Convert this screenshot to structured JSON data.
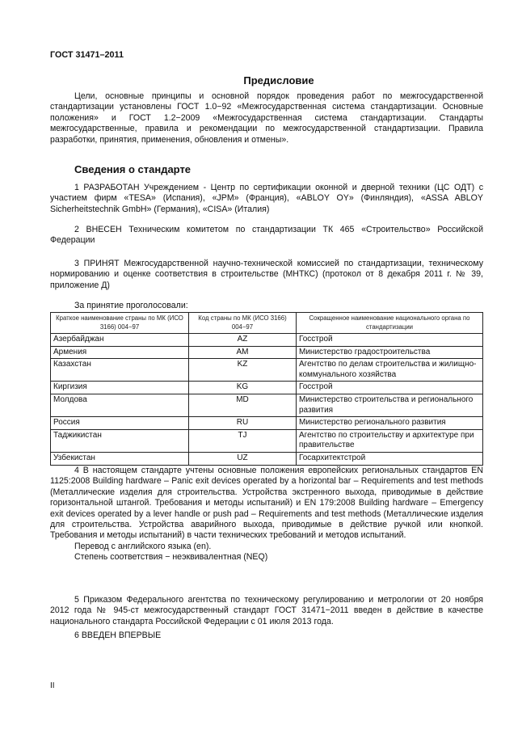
{
  "header": {
    "doc_code": "ГОСТ 31471–2011"
  },
  "preface": {
    "title": "Предисловие",
    "text": "Цели, основные принципы и основной порядок проведения работ по межгосударственной стандартизации установлены ГОСТ 1.0−92 «Межгосударственная система стандартизации. Основные положения» и ГОСТ 1.2−2009 «Межгосударственная система стандартизации. Стандарты межгосударственные, правила и рекомендации по межгосударственной стандартизации. Правила разработки, принятия, применения, обновления и отмены»."
  },
  "info": {
    "title": "Сведения о стандарте",
    "p1": "1 РАЗРАБОТАН Учреждением - Центр по сертификации оконной и дверной техники (ЦС ОДТ) с участием фирм «TESA» (Испания), «JPM» (Франция), «ABLOY OY» (Финляндия), «ASSA ABLOY Sicherheitstechnik GmbH» (Германия), «CISA» (Италия)",
    "p2": "2 ВНЕСЕН Техническим комитетом по стандартизации ТК 465 «Строительство» Российской Федерации",
    "p3": "3 ПРИНЯТ Межгосударственной научно-технической комиссией по стандартизации, техническому нормированию и оценке соответствия в строительстве (МНТКС) (протокол от 8 декабря 2011 г. № 39, приложение Д)",
    "vote_label": "За принятие проголосовали:",
    "p4": "4 В настоящем стандарте учтены основные положения европейских региональных стандартов EN 1125:2008 Building hardware – Panic exit devices operated by a horizontal bar – Requirements and test methods (Металлические изделия для строительства. Устройства экстренного выхода, приводимые в действие горизонтальной штангой. Требования и методы испытаний) и EN 179:2008 Building hardware – Emergency exit devices operated by a lever handle or push pad – Requirements and test methods (Металлические изделия для строительства. Устройства аварийного выхода, приводимые в действие ручкой или кнопкой. Требования и методы испытаний) в части технических требований и методов испытаний.",
    "p4_translation": "Перевод с английского языка (en).",
    "p4_degree": "Степень соответствия − неэквивалентная (NEQ)",
    "p5": "5 Приказом Федерального агентства по техническому регулированию и метрологии от 20 ноября 2012 года № 945-ст межгосударственный стандарт ГОСТ 31471−2011 введен в действие в качестве национального стандарта Российской Федерации с 01 июля 2013 года.",
    "p6": "6 ВВЕДЕН ВПЕРВЫЕ"
  },
  "table": {
    "headers": [
      "Краткое наименование страны по МК (ИСО 3166) 004−97",
      "Код страны по МК (ИСО 3166) 004−97",
      "Сокращенное наименование национального органа по стандартизации"
    ],
    "rows": [
      [
        "Азербайджан",
        "AZ",
        "Госстрой"
      ],
      [
        "Армения",
        "AM",
        "Министерство градостроительства"
      ],
      [
        "Казахстан",
        "KZ",
        "Агентство по делам строительства и жилищно-коммунального хозяйства"
      ],
      [
        "Киргизия",
        "KG",
        "Госстрой"
      ],
      [
        "Молдова",
        "MD",
        "Министерство строительства и регионального развития"
      ],
      [
        "Россия",
        "RU",
        "Министерство регионального развития"
      ],
      [
        "Таджикистан",
        "TJ",
        "Агентство по строительству и архитектуре при правительстве"
      ],
      [
        "Узбекистан",
        "UZ",
        "Госархитектстрой"
      ]
    ]
  },
  "footer": {
    "page_number": "II"
  }
}
